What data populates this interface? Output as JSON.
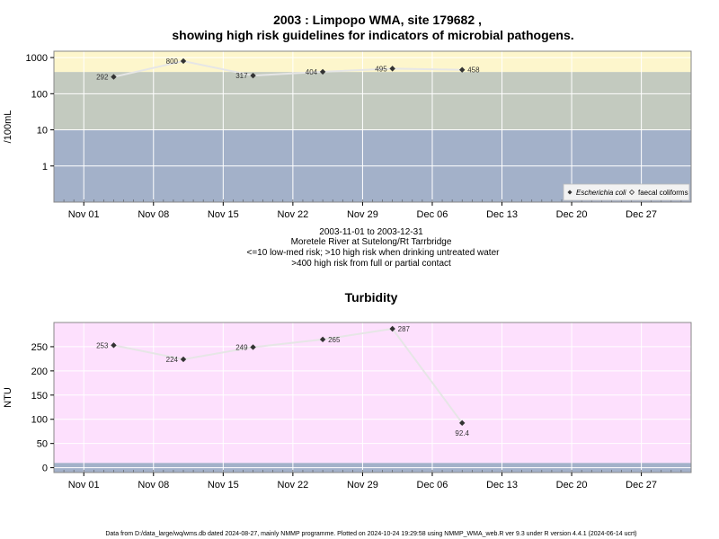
{
  "title_line1": "2003 : Limpopo WMA, site 179682 ,",
  "title_line2": "showing high risk guidelines for indicators of microbial pathogens.",
  "info_lines": [
    "2003-11-01 to 2003-12-31",
    "Moretele River at Sutelong/Rt Tarrbridge",
    "<=10 low-med risk; >10 high risk when drinking untreated water",
    ">400 high risk from full or partial contact"
  ],
  "footer": "Data from D:/data_large/wq/wms.db dated 2024-08-27, mainly NMMP programme. Plotted on 2024-10-24 19:29:58 using NMMP_WMA_web.R ver 9.3 under R version 4.4.1 (2024-06-14 ucrt)",
  "colors": {
    "low_band": "#a3b1c9",
    "mid_band": "#c3cabf",
    "high_band": "#fdf6cc",
    "turbidity_bg": "#fde0fd",
    "grid": "#ffffff",
    "line": "#e6e6e6",
    "point": "#333333"
  },
  "chart_data": [
    {
      "type": "line",
      "title": "",
      "xlabel": "",
      "ylabel": "/100mL",
      "yscale": "log",
      "ylim": [
        0.1,
        1500
      ],
      "xlim": [
        "2003-10-29",
        "2004-01-01"
      ],
      "y_ticks": [
        {
          "value": 1,
          "label": "1"
        },
        {
          "value": 10,
          "label": "10"
        },
        {
          "value": 100,
          "label": "100"
        },
        {
          "value": 1000,
          "label": "1000"
        }
      ],
      "x_ticks": [
        {
          "date": "2003-11-01",
          "label": "Nov 01"
        },
        {
          "date": "2003-11-08",
          "label": "Nov 08"
        },
        {
          "date": "2003-11-15",
          "label": "Nov 15"
        },
        {
          "date": "2003-11-22",
          "label": "Nov 22"
        },
        {
          "date": "2003-11-29",
          "label": "Nov 29"
        },
        {
          "date": "2003-12-06",
          "label": "Dec 06"
        },
        {
          "date": "2003-12-13",
          "label": "Dec 13"
        },
        {
          "date": "2003-12-20",
          "label": "Dec 20"
        },
        {
          "date": "2003-12-27",
          "label": "Dec 27"
        }
      ],
      "bands": [
        {
          "from": 0.1,
          "to": 10,
          "color_key": "low_band"
        },
        {
          "from": 10,
          "to": 400,
          "color_key": "mid_band"
        },
        {
          "from": 400,
          "to": 1500,
          "color_key": "high_band"
        }
      ],
      "series": [
        {
          "name": "Escherichia coli",
          "points": [
            {
              "x": "2003-11-04",
              "y": 292,
              "label": "292",
              "pos": "left"
            },
            {
              "x": "2003-11-11",
              "y": 800,
              "label": "800",
              "pos": "left"
            },
            {
              "x": "2003-11-18",
              "y": 317,
              "label": "317",
              "pos": "left"
            },
            {
              "x": "2003-11-25",
              "y": 404,
              "label": "404",
              "pos": "left"
            },
            {
              "x": "2003-12-02",
              "y": 495,
              "label": "495",
              "pos": "left"
            },
            {
              "x": "2003-12-09",
              "y": 458,
              "label": "458",
              "pos": "right"
            }
          ]
        }
      ],
      "legend": {
        "placement": "bottom-right",
        "entries": [
          "Escherichia coli",
          "faecal coliforms"
        ]
      },
      "grid": true
    },
    {
      "type": "line",
      "title": "Turbidity",
      "xlabel": "",
      "ylabel": "NTU",
      "yscale": "linear",
      "ylim": [
        -10,
        300
      ],
      "xlim": [
        "2003-10-29",
        "2004-01-01"
      ],
      "y_ticks": [
        {
          "value": 0,
          "label": "0"
        },
        {
          "value": 50,
          "label": "50"
        },
        {
          "value": 100,
          "label": "100"
        },
        {
          "value": 150,
          "label": "150"
        },
        {
          "value": 200,
          "label": "200"
        },
        {
          "value": 250,
          "label": "250"
        }
      ],
      "x_ticks": [
        {
          "date": "2003-11-01",
          "label": "Nov 01"
        },
        {
          "date": "2003-11-08",
          "label": "Nov 08"
        },
        {
          "date": "2003-11-15",
          "label": "Nov 15"
        },
        {
          "date": "2003-11-22",
          "label": "Nov 22"
        },
        {
          "date": "2003-11-29",
          "label": "Nov 29"
        },
        {
          "date": "2003-12-06",
          "label": "Dec 06"
        },
        {
          "date": "2003-12-13",
          "label": "Dec 13"
        },
        {
          "date": "2003-12-20",
          "label": "Dec 20"
        },
        {
          "date": "2003-12-27",
          "label": "Dec 27"
        }
      ],
      "bands": [
        {
          "from": -10,
          "to": 10,
          "color_key": "low_band"
        },
        {
          "from": 10,
          "to": 300,
          "color_key": "turbidity_bg"
        }
      ],
      "series": [
        {
          "points": [
            {
              "x": "2003-11-04",
              "y": 253,
              "label": "253",
              "pos": "left"
            },
            {
              "x": "2003-11-11",
              "y": 224,
              "label": "224",
              "pos": "left"
            },
            {
              "x": "2003-11-18",
              "y": 249,
              "label": "249",
              "pos": "left"
            },
            {
              "x": "2003-11-25",
              "y": 265,
              "label": "265",
              "pos": "right"
            },
            {
              "x": "2003-12-02",
              "y": 287,
              "label": "287",
              "pos": "right"
            },
            {
              "x": "2003-12-09",
              "y": 92.4,
              "label": "92.4",
              "pos": "below"
            }
          ]
        }
      ],
      "grid": true
    }
  ]
}
